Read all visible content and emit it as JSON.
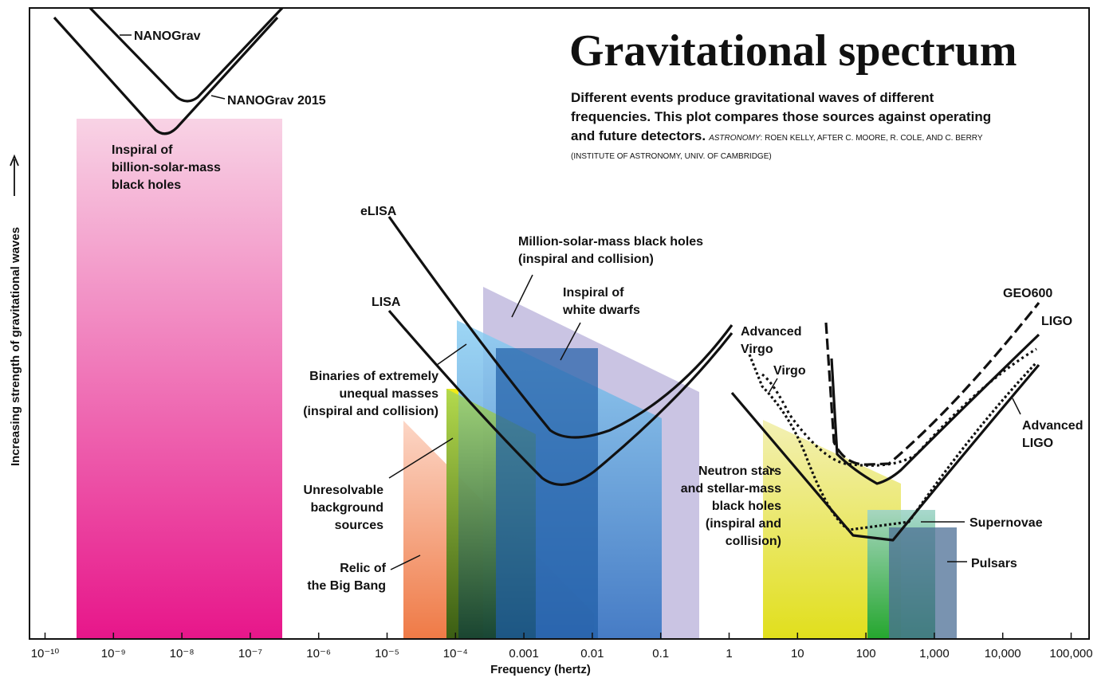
{
  "title": "Gravitational spectrum",
  "subtitle": [
    "Different events produce gravitational waves of different",
    "frequencies. This plot compares those sources against operating",
    "and future detectors."
  ],
  "credit": {
    "source": "ASTRONOMY",
    "text": ": ROEN KELLY, AFTER C. MOORE, R. COLE, AND C. BERRY",
    "affiliation": "(INSTITUTE OF ASTRONOMY, UNIV. OF CAMBRIDGE)"
  },
  "x_axis": {
    "label": "Frequency (hertz)",
    "scale": "log",
    "ticks": [
      {
        "value": 1e-10,
        "label": "10⁻¹⁰"
      },
      {
        "value": 1e-09,
        "label": "10⁻⁹"
      },
      {
        "value": 1e-08,
        "label": "10⁻⁸"
      },
      {
        "value": 1e-07,
        "label": "10⁻⁷"
      },
      {
        "value": 1e-06,
        "label": "10⁻⁶"
      },
      {
        "value": 1e-05,
        "label": "10⁻⁵"
      },
      {
        "value": 0.0001,
        "label": "10⁻⁴"
      },
      0.001,
      0.01,
      0.1,
      1,
      10,
      100,
      {
        "value": 1000,
        "label": "1,000"
      },
      {
        "value": 10000,
        "label": "10,000"
      },
      {
        "value": 100000,
        "label": "100,000"
      }
    ]
  },
  "y_axis": {
    "label": "Increasing strength of gravitational waves"
  },
  "detectors": {
    "nanograv": "NANOGrav",
    "nanograv2015": "NANOGrav 2015",
    "elisa": "eLISA",
    "lisa": "LISA",
    "advanced_virgo": [
      "Advanced",
      "Virgo"
    ],
    "virgo": "Virgo",
    "geo600": "GEO600",
    "ligo": "LIGO",
    "advanced_ligo": [
      "Advanced",
      "LIGO"
    ]
  },
  "sources": {
    "billion": [
      "Inspiral of",
      "billion-solar-mass",
      "black holes"
    ],
    "million": [
      "Million-solar-mass black holes",
      "(inspiral and collision)"
    ],
    "white_dwarfs": [
      "Inspiral of",
      "white dwarfs"
    ],
    "binaries": [
      "Binaries of extremely",
      "unequal masses",
      "(inspiral and collision)"
    ],
    "unresolvable": [
      "Unresolvable",
      "background",
      "sources"
    ],
    "relic": [
      "Relic of",
      "the Big Bang"
    ],
    "neutron": [
      "Neutron stars",
      "and stellar-mass",
      "black holes",
      "(inspiral and",
      "collision)"
    ],
    "supernovae": "Supernovae",
    "pulsars": "Pulsars"
  }
}
